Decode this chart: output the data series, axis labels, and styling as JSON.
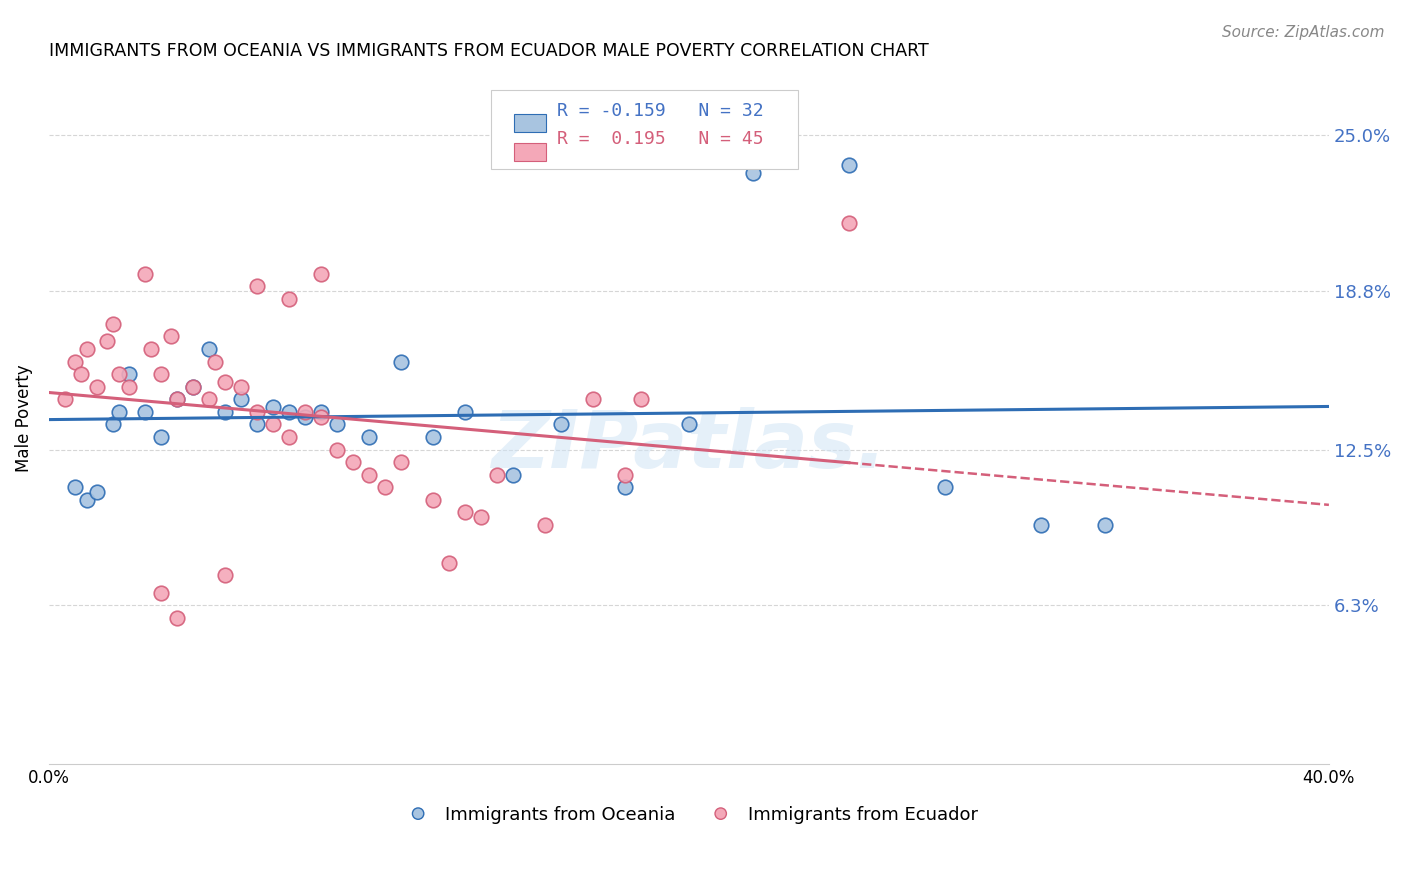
{
  "title": "IMMIGRANTS FROM OCEANIA VS IMMIGRANTS FROM ECUADOR MALE POVERTY CORRELATION CHART",
  "source": "Source: ZipAtlas.com",
  "ylabel": "Male Poverty",
  "ytick_values": [
    6.3,
    12.5,
    18.8,
    25.0
  ],
  "xlim": [
    0.0,
    40.0
  ],
  "ylim": [
    0.0,
    27.5
  ],
  "watermark": "ZIPatlas.",
  "color_oceania": "#a8c4e0",
  "color_ecuador": "#f4a8b8",
  "line_color_oceania": "#2e6db4",
  "line_color_ecuador": "#d45f7a",
  "oceania_x": [
    0.8,
    1.2,
    1.5,
    2.0,
    2.2,
    2.5,
    3.0,
    3.5,
    4.0,
    4.5,
    5.0,
    5.5,
    6.0,
    6.5,
    7.0,
    7.5,
    8.0,
    8.5,
    9.0,
    10.0,
    11.0,
    12.0,
    13.0,
    14.5,
    16.0,
    18.0,
    20.0,
    22.0,
    25.0,
    28.0,
    31.0,
    33.0
  ],
  "oceania_y": [
    11.0,
    10.5,
    10.8,
    13.5,
    14.0,
    15.5,
    14.0,
    13.0,
    14.5,
    15.0,
    16.5,
    14.0,
    14.5,
    13.5,
    14.2,
    14.0,
    13.8,
    14.0,
    13.5,
    13.0,
    16.0,
    13.0,
    14.0,
    11.5,
    13.5,
    11.0,
    13.5,
    23.5,
    23.8,
    11.0,
    9.5,
    9.5
  ],
  "ecuador_x": [
    0.5,
    0.8,
    1.0,
    1.2,
    1.5,
    1.8,
    2.0,
    2.2,
    2.5,
    3.0,
    3.2,
    3.5,
    3.8,
    4.0,
    4.5,
    5.0,
    5.2,
    5.5,
    6.0,
    6.5,
    7.0,
    7.5,
    8.0,
    8.5,
    9.0,
    9.5,
    10.0,
    10.5,
    11.0,
    12.0,
    13.0,
    13.5,
    14.0,
    15.5,
    17.0,
    18.0,
    18.5,
    6.5,
    7.5,
    8.5,
    3.5,
    5.5,
    12.5,
    4.0,
    25.0
  ],
  "ecuador_y": [
    14.5,
    16.0,
    15.5,
    16.5,
    15.0,
    16.8,
    17.5,
    15.5,
    15.0,
    19.5,
    16.5,
    15.5,
    17.0,
    14.5,
    15.0,
    14.5,
    16.0,
    15.2,
    15.0,
    14.0,
    13.5,
    13.0,
    14.0,
    13.8,
    12.5,
    12.0,
    11.5,
    11.0,
    12.0,
    10.5,
    10.0,
    9.8,
    11.5,
    9.5,
    14.5,
    11.5,
    14.5,
    19.0,
    18.5,
    19.5,
    6.8,
    7.5,
    8.0,
    5.8,
    21.5
  ]
}
